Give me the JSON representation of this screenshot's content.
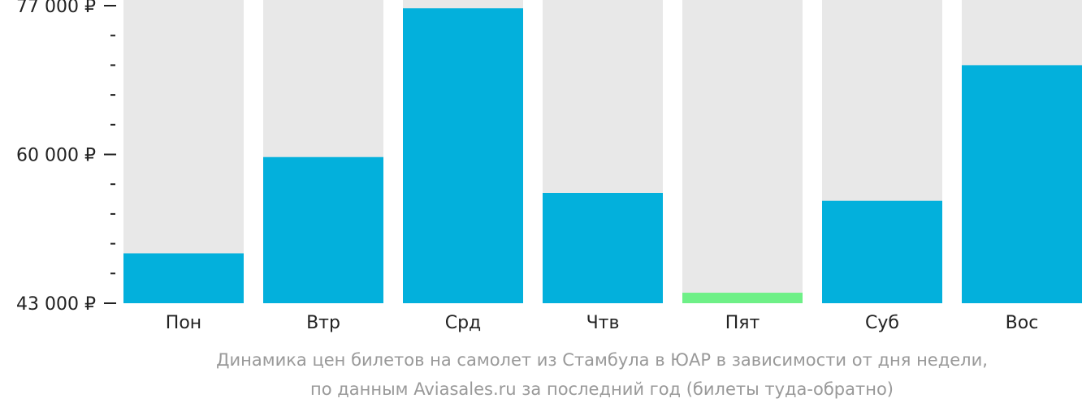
{
  "chart_data": {
    "type": "bar",
    "categories": [
      "Пон",
      "Втр",
      "Срд",
      "Чтв",
      "Пят",
      "Суб",
      "Вос"
    ],
    "values": [
      48700,
      59700,
      76700,
      55600,
      44200,
      54700,
      70200
    ],
    "highlight_index": 4,
    "ylim": [
      43000,
      77000
    ],
    "y_tick_labels": [
      {
        "value": 77000,
        "label": "77 000 ₽"
      },
      {
        "value": 60000,
        "label": "60 000 ₽"
      },
      {
        "value": 43000,
        "label": "43 000 ₽"
      }
    ],
    "minor_tick_step": 3400,
    "colors": {
      "bar": "#03b0dc",
      "highlight": "#6ef087",
      "background_bar": "#e8e8e8",
      "axis": "#222222"
    }
  },
  "caption": {
    "line1": "Динамика цен билетов на самолет из Стамбула в ЮАР в зависимости от дня недели,",
    "line2": "по данным Aviasales.ru за последний год (билеты туда-обратно)"
  }
}
